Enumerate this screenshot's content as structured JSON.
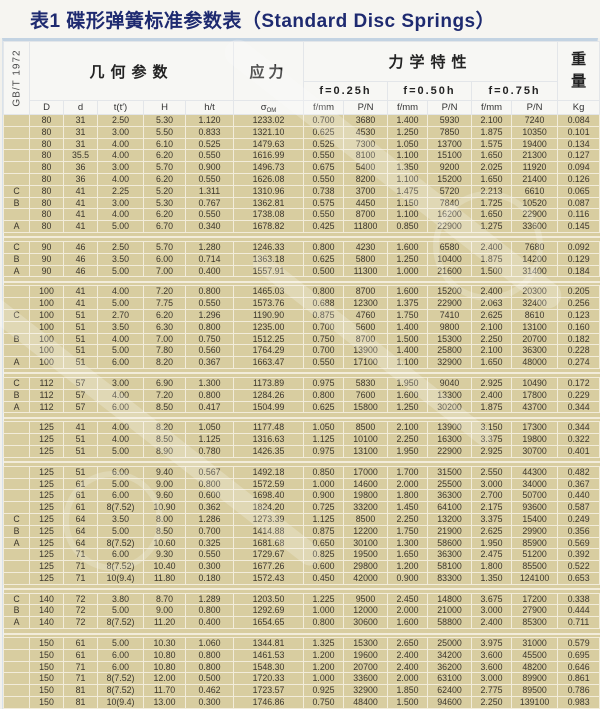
{
  "title": "表1 碟形弹簧标准参数表（Standard Disc Springs）",
  "standard_label": "GB/T 1972",
  "header": {
    "geometry": "几何参数",
    "stress": "应力",
    "mechanical": "力学特性",
    "weight": "重量",
    "deflections": {
      "f025": "f=0.25h",
      "f050": "f=0.50h",
      "f075": "f=0.75h"
    },
    "columns": {
      "D": "D",
      "d": "d",
      "t": "t(t′)",
      "H": "H",
      "ht": "h/t",
      "sigma_main": "σ",
      "sigma_sub": "OM",
      "f_mm_1": "f/mm",
      "p_n_1": "P/N",
      "f_mm_2": "f/mm",
      "p_n_2": "P/N",
      "f_mm_3": "f/mm",
      "p_n_3": "P/N",
      "kg": "Kg"
    }
  },
  "colors": {
    "title_text": "#1e2a70",
    "row_background": "#d8cda0",
    "grid_line": "#f2ecda",
    "header_background": "#f7f7f4",
    "top_border": "#c3d3e2"
  },
  "table": {
    "column_keys": [
      "series",
      "D",
      "d",
      "t",
      "H",
      "h-t",
      "sigma-om",
      "f-025",
      "p-025",
      "f-050",
      "p-050",
      "f-075",
      "p-075",
      "kg"
    ],
    "groups": [
      {
        "rows": [
          [
            "",
            "80",
            "31",
            "2.50",
            "5.30",
            "1.120",
            "1233.02",
            "0.700",
            "3680",
            "1.400",
            "5930",
            "2.100",
            "7240",
            "0.084"
          ],
          [
            "",
            "80",
            "31",
            "3.00",
            "5.50",
            "0.833",
            "1321.10",
            "0.625",
            "4530",
            "1.250",
            "7850",
            "1.875",
            "10350",
            "0.101"
          ],
          [
            "",
            "80",
            "31",
            "4.00",
            "6.10",
            "0.525",
            "1479.63",
            "0.525",
            "7300",
            "1.050",
            "13700",
            "1.575",
            "19400",
            "0.134"
          ],
          [
            "",
            "80",
            "35.5",
            "4.00",
            "6.20",
            "0.550",
            "1616.99",
            "0.550",
            "8100",
            "1.100",
            "15100",
            "1.650",
            "21300",
            "0.127"
          ],
          [
            "",
            "80",
            "36",
            "3.00",
            "5.70",
            "0.900",
            "1496.73",
            "0.675",
            "5400",
            "1.350",
            "9200",
            "2.025",
            "11920",
            "0.094"
          ],
          [
            "",
            "80",
            "36",
            "4.00",
            "6.20",
            "0.550",
            "1626.08",
            "0.550",
            "8200",
            "1.100",
            "15200",
            "1.650",
            "21400",
            "0.126"
          ],
          [
            "C",
            "80",
            "41",
            "2.25",
            "5.20",
            "1.311",
            "1310.96",
            "0.738",
            "3700",
            "1.475",
            "5720",
            "2.213",
            "6610",
            "0.065"
          ],
          [
            "B",
            "80",
            "41",
            "3.00",
            "5.30",
            "0.767",
            "1362.81",
            "0.575",
            "4450",
            "1.150",
            "7840",
            "1.725",
            "10520",
            "0.087"
          ],
          [
            "",
            "80",
            "41",
            "4.00",
            "6.20",
            "0.550",
            "1738.08",
            "0.550",
            "8700",
            "1.100",
            "16200",
            "1.650",
            "22900",
            "0.116"
          ],
          [
            "A",
            "80",
            "41",
            "5.00",
            "6.70",
            "0.340",
            "1678.82",
            "0.425",
            "11800",
            "0.850",
            "22900",
            "1.275",
            "33600",
            "0.145"
          ]
        ]
      },
      {
        "rows": [
          [
            "C",
            "90",
            "46",
            "2.50",
            "5.70",
            "1.280",
            "1246.33",
            "0.800",
            "4230",
            "1.600",
            "6580",
            "2.400",
            "7680",
            "0.092"
          ],
          [
            "B",
            "90",
            "46",
            "3.50",
            "6.00",
            "0.714",
            "1363.18",
            "0.625",
            "5800",
            "1.250",
            "10400",
            "1.875",
            "14200",
            "0.129"
          ],
          [
            "A",
            "90",
            "46",
            "5.00",
            "7.00",
            "0.400",
            "1557.91",
            "0.500",
            "11300",
            "1.000",
            "21600",
            "1.500",
            "31400",
            "0.184"
          ]
        ]
      },
      {
        "rows": [
          [
            "",
            "100",
            "41",
            "4.00",
            "7.20",
            "0.800",
            "1465.03",
            "0.800",
            "8700",
            "1.600",
            "15200",
            "2.400",
            "20300",
            "0.205"
          ],
          [
            "",
            "100",
            "41",
            "5.00",
            "7.75",
            "0.550",
            "1573.76",
            "0.688",
            "12300",
            "1.375",
            "22900",
            "2.063",
            "32400",
            "0.256"
          ],
          [
            "C",
            "100",
            "51",
            "2.70",
            "6.20",
            "1.296",
            "1190.90",
            "0.875",
            "4760",
            "1.750",
            "7410",
            "2.625",
            "8610",
            "0.123"
          ],
          [
            "",
            "100",
            "51",
            "3.50",
            "6.30",
            "0.800",
            "1235.00",
            "0.700",
            "5600",
            "1.400",
            "9800",
            "2.100",
            "13100",
            "0.160"
          ],
          [
            "B",
            "100",
            "51",
            "4.00",
            "7.00",
            "0.750",
            "1512.25",
            "0.750",
            "8700",
            "1.500",
            "15300",
            "2.250",
            "20700",
            "0.182"
          ],
          [
            "",
            "100",
            "51",
            "5.00",
            "7.80",
            "0.560",
            "1764.29",
            "0.700",
            "13900",
            "1.400",
            "25800",
            "2.100",
            "36300",
            "0.228"
          ],
          [
            "A",
            "100",
            "51",
            "6.00",
            "8.20",
            "0.367",
            "1663.47",
            "0.550",
            "17100",
            "1.100",
            "32900",
            "1.650",
            "48000",
            "0.274"
          ]
        ]
      },
      {
        "rows": [
          [
            "C",
            "112",
            "57",
            "3.00",
            "6.90",
            "1.300",
            "1173.89",
            "0.975",
            "5830",
            "1.950",
            "9040",
            "2.925",
            "10490",
            "0.172"
          ],
          [
            "B",
            "112",
            "57",
            "4.00",
            "7.20",
            "0.800",
            "1284.26",
            "0.800",
            "7600",
            "1.600",
            "13300",
            "2.400",
            "17800",
            "0.229"
          ],
          [
            "A",
            "112",
            "57",
            "6.00",
            "8.50",
            "0.417",
            "1504.99",
            "0.625",
            "15800",
            "1.250",
            "30200",
            "1.875",
            "43700",
            "0.344"
          ]
        ]
      },
      {
        "rows": [
          [
            "",
            "125",
            "41",
            "4.00",
            "8.20",
            "1.050",
            "1177.48",
            "1.050",
            "8500",
            "2.100",
            "13900",
            "3.150",
            "17300",
            "0.344"
          ],
          [
            "",
            "125",
            "51",
            "4.00",
            "8.50",
            "1.125",
            "1316.63",
            "1.125",
            "10100",
            "2.250",
            "16300",
            "3.375",
            "19800",
            "0.322"
          ],
          [
            "",
            "125",
            "51",
            "5.00",
            "8.90",
            "0.780",
            "1426.35",
            "0.975",
            "13100",
            "1.950",
            "22900",
            "2.925",
            "30700",
            "0.401"
          ]
        ]
      },
      {
        "rows": [
          [
            "",
            "125",
            "51",
            "6.00",
            "9.40",
            "0.567",
            "1492.18",
            "0.850",
            "17000",
            "1.700",
            "31500",
            "2.550",
            "44300",
            "0.482"
          ],
          [
            "",
            "125",
            "61",
            "5.00",
            "9.00",
            "0.800",
            "1572.59",
            "1.000",
            "14600",
            "2.000",
            "25500",
            "3.000",
            "34000",
            "0.367"
          ],
          [
            "",
            "125",
            "61",
            "6.00",
            "9.60",
            "0.600",
            "1698.40",
            "0.900",
            "19800",
            "1.800",
            "36300",
            "2.700",
            "50700",
            "0.440"
          ],
          [
            "",
            "125",
            "61",
            "8(7.52)",
            "10.90",
            "0.362",
            "1824.20",
            "0.725",
            "33200",
            "1.450",
            "64100",
            "2.175",
            "93600",
            "0.587"
          ],
          [
            "C",
            "125",
            "64",
            "3.50",
            "8.00",
            "1.286",
            "1273.39",
            "1.125",
            "8500",
            "2.250",
            "13200",
            "3.375",
            "15400",
            "0.249"
          ],
          [
            "B",
            "125",
            "64",
            "5.00",
            "8.50",
            "0.700",
            "1414.88",
            "0.875",
            "12200",
            "1.750",
            "21900",
            "2.625",
            "29900",
            "0.356"
          ],
          [
            "A",
            "125",
            "64",
            "8(7.52)",
            "10.60",
            "0.325",
            "1681.68",
            "0.650",
            "30100",
            "1.300",
            "58600",
            "1.950",
            "85900",
            "0.569"
          ],
          [
            "",
            "125",
            "71",
            "6.00",
            "9.30",
            "0.550",
            "1729.67",
            "0.825",
            "19500",
            "1.650",
            "36300",
            "2.475",
            "51200",
            "0.392"
          ],
          [
            "",
            "125",
            "71",
            "8(7.52)",
            "10.40",
            "0.300",
            "1677.26",
            "0.600",
            "29800",
            "1.200",
            "58100",
            "1.800",
            "85500",
            "0.522"
          ],
          [
            "",
            "125",
            "71",
            "10(9.4)",
            "11.80",
            "0.180",
            "1572.43",
            "0.450",
            "42000",
            "0.900",
            "83300",
            "1.350",
            "124100",
            "0.653"
          ]
        ]
      },
      {
        "rows": [
          [
            "C",
            "140",
            "72",
            "3.80",
            "8.70",
            "1.289",
            "1203.50",
            "1.225",
            "9500",
            "2.450",
            "14800",
            "3.675",
            "17200",
            "0.338"
          ],
          [
            "B",
            "140",
            "72",
            "5.00",
            "9.00",
            "0.800",
            "1292.69",
            "1.000",
            "12000",
            "2.000",
            "21000",
            "3.000",
            "27900",
            "0.444"
          ],
          [
            "A",
            "140",
            "72",
            "8(7.52)",
            "11.20",
            "0.400",
            "1654.65",
            "0.800",
            "30600",
            "1.600",
            "58800",
            "2.400",
            "85300",
            "0.711"
          ]
        ]
      },
      {
        "rows": [
          [
            "",
            "150",
            "61",
            "5.00",
            "10.30",
            "1.060",
            "1344.81",
            "1.325",
            "15300",
            "2.650",
            "25000",
            "3.975",
            "31000",
            "0.579"
          ],
          [
            "",
            "150",
            "61",
            "6.00",
            "10.80",
            "0.800",
            "1461.53",
            "1.200",
            "19600",
            "2.400",
            "34200",
            "3.600",
            "45500",
            "0.695"
          ],
          [
            "",
            "150",
            "71",
            "6.00",
            "10.80",
            "0.800",
            "1548.30",
            "1.200",
            "20700",
            "2.400",
            "36200",
            "3.600",
            "48200",
            "0.646"
          ],
          [
            "",
            "150",
            "71",
            "8(7.52)",
            "12.00",
            "0.500",
            "1720.33",
            "1.000",
            "33600",
            "2.000",
            "63100",
            "3.000",
            "89900",
            "0.861"
          ],
          [
            "",
            "150",
            "81",
            "8(7.52)",
            "11.70",
            "0.462",
            "1723.57",
            "0.925",
            "32900",
            "1.850",
            "62400",
            "2.775",
            "89500",
            "0.786"
          ],
          [
            "",
            "150",
            "81",
            "10(9.4)",
            "13.00",
            "0.300",
            "1746.86",
            "0.750",
            "48400",
            "1.500",
            "94600",
            "2.250",
            "139100",
            "0.983"
          ]
        ]
      }
    ]
  }
}
